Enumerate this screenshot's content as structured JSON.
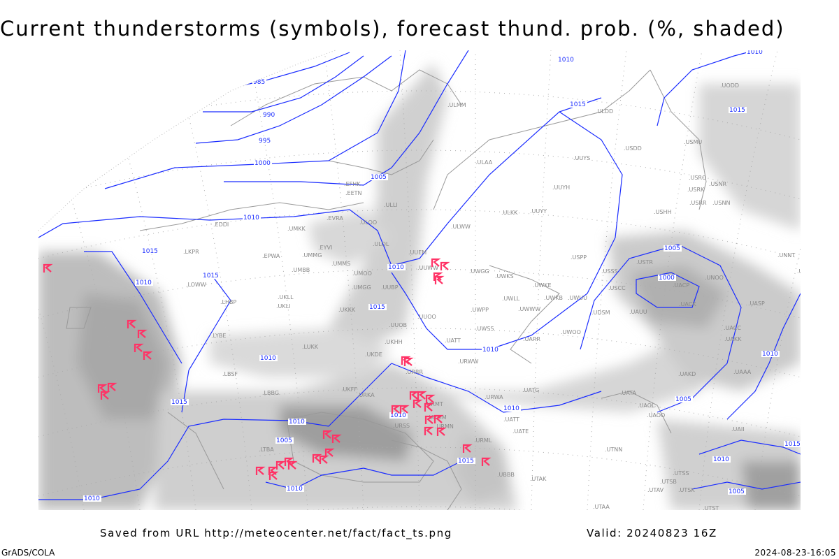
{
  "title": "Current thunderstorms (symbols), forecast thund. prob. (%, shaded)",
  "footer": {
    "saved_from": "Saved from URL http://meteocenter.net/fact/fact_ts.png",
    "valid": "Valid: 20240823 16Z",
    "software": "GrADS/COLA",
    "timestamp": "2024-08-23-16:05"
  },
  "colors": {
    "isobars": "#1a2cff",
    "thunderstorm_symbols": "#ff3366",
    "shading": "#c8c8c8",
    "coastlines": "#999999"
  },
  "legend": {
    "symbol": "thunderstorm-icon",
    "shading": "forecast thunderstorm probability (%)"
  },
  "isobar_labels": [
    "985",
    "990",
    "995",
    "1000",
    "1005",
    "1010",
    "1015",
    "1010",
    "1015",
    "1010",
    "1015",
    "1010",
    "1015",
    "1015",
    "1010",
    "1010",
    "1015",
    "1010",
    "1010",
    "1010",
    "1010",
    "1005",
    "1000",
    "1005",
    "1005",
    "1010",
    "1015",
    "1010",
    "1010",
    "1010",
    "1015",
    "1005"
  ],
  "stations": [
    "UUEM",
    "UUWW",
    "UWGG",
    "UWKS",
    "UWPP",
    "UUOO",
    "UWSS",
    "UARR",
    "UWWW",
    "UWLL",
    "UWKE",
    "UWKB",
    "UWUU",
    "USSS",
    "USCC",
    "UAUU",
    "USTR",
    "USPP",
    "USDD",
    "USMU",
    "USRO",
    "USRK",
    "USNR",
    "USRR",
    "USNN",
    "USHH",
    "ULLI",
    "ULOO",
    "ULOL",
    "UUBP",
    "UUOB",
    "UKKK",
    "UKHH",
    "UKDE",
    "UMGG",
    "UMMS",
    "UMOO",
    "UMMG",
    "UMBB",
    "EYVI",
    "EVRA",
    "UMKK",
    "EETN",
    "EFHK",
    "EDDI",
    "EPWA",
    "LKPR",
    "LOWW",
    "LHBP",
    "UKLL",
    "UKLI",
    "LYBE",
    "LBSF",
    "LUKK",
    "UKFF",
    "URKA",
    "URRR",
    "URMT",
    "URMM",
    "URMN",
    "URSS",
    "ULAA",
    "ULMM",
    "ULDD",
    "UUYS",
    "UUYH",
    "UUYY",
    "ULKK",
    "ULWW",
    "URWW",
    "URWA",
    "UATG",
    "UATT",
    "UATE",
    "UATA",
    "UAOL",
    "UACC",
    "UAKK",
    "UAKD",
    "UAAA",
    "UACK",
    "UACP",
    "UNOO",
    "UASP",
    "UNNT",
    "UNBB",
    "UODD",
    "UAOO",
    "UTNN",
    "UTAK",
    "UBBB",
    "URML",
    "UTSS",
    "UTSB",
    "UTAV",
    "UTSK",
    "UTST",
    "UTAA",
    "UAII",
    "LBBG",
    "LTBA",
    "UWOO",
    "UDSM",
    "UATT"
  ]
}
